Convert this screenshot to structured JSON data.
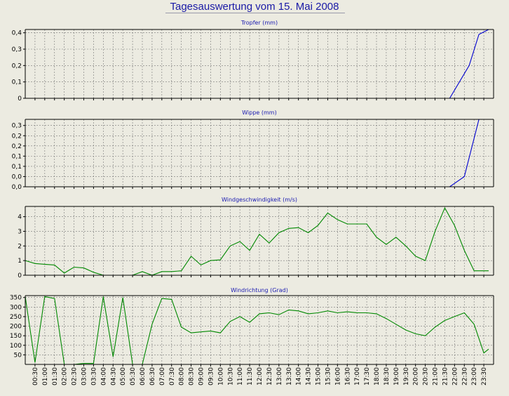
{
  "title": "Tagesauswertung vom 15. Mai 2008",
  "x_ticks": [
    "00:30",
    "01:00",
    "01:30",
    "02:00",
    "02:30",
    "03:00",
    "03:30",
    "04:00",
    "04:30",
    "05:00",
    "05:30",
    "06:00",
    "06:30",
    "07:00",
    "07:30",
    "08:00",
    "08:30",
    "09:00",
    "09:30",
    "10:00",
    "10:30",
    "11:00",
    "11:30",
    "12:00",
    "12:30",
    "13:00",
    "13:30",
    "14:00",
    "14:30",
    "15:00",
    "15:30",
    "16:00",
    "16:30",
    "17:00",
    "17:30",
    "18:00",
    "18:30",
    "19:00",
    "19:30",
    "20:00",
    "20:30",
    "21:00",
    "21:30",
    "22:00",
    "22:30",
    "23:00",
    "23:30"
  ],
  "chart_data": [
    {
      "type": "line",
      "title": "Tropfer (mm)",
      "color": "#0000d0",
      "ylim": [
        0,
        0.42
      ],
      "y_ticks": [
        0,
        0.1,
        0.2,
        0.3,
        0.4
      ],
      "y_tick_labels": [
        "0",
        "0,1",
        "0,2",
        "0,3",
        "0,4"
      ],
      "x_hours": [
        0,
        21.75,
        22.75,
        23.25,
        23.75
      ],
      "values": [
        0,
        0,
        0.2,
        0.39,
        0.42
      ]
    },
    {
      "type": "line",
      "title": "Wippe (mm)",
      "color": "#0000d0",
      "ylim": [
        0,
        0.33
      ],
      "y_ticks": [
        0,
        0.05,
        0.1,
        0.15,
        0.2,
        0.25,
        0.3
      ],
      "y_tick_labels": [
        "0,0",
        "0,0",
        "0,1",
        "0,1",
        "0,2",
        "0,2",
        "0,3"
      ],
      "x_hours": [
        0,
        21.75,
        22.5,
        23.25
      ],
      "values": [
        0,
        0,
        0.05,
        0.33
      ]
    },
    {
      "type": "line",
      "title": "Windgeschwindigkeit (m/s)",
      "color": "#008800",
      "ylim": [
        0,
        4.7
      ],
      "y_ticks": [
        0,
        1,
        2,
        3,
        4
      ],
      "y_tick_labels": [
        "0",
        "1",
        "2",
        "3",
        "4"
      ],
      "x_hours": [
        0,
        0.5,
        1,
        1.5,
        2,
        2.5,
        3,
        3.5,
        4,
        4.5,
        5,
        5.5,
        6,
        6.5,
        7,
        7.5,
        8,
        8.5,
        9,
        9.5,
        10,
        10.5,
        11,
        11.5,
        12,
        12.5,
        13,
        13.5,
        14,
        14.5,
        15,
        15.5,
        16,
        16.5,
        17,
        17.5,
        18,
        18.5,
        19,
        19.5,
        20,
        20.5,
        21,
        21.5,
        22,
        22.5,
        23,
        23.5,
        23.75
      ],
      "values": [
        1.0,
        0.8,
        0.75,
        0.7,
        0.15,
        0.55,
        0.5,
        0.2,
        0.0,
        0.0,
        0.0,
        0.0,
        0.25,
        0.0,
        0.25,
        0.25,
        0.3,
        1.3,
        0.7,
        1.0,
        1.05,
        2.0,
        2.3,
        1.7,
        2.8,
        2.2,
        2.9,
        3.2,
        3.25,
        2.9,
        3.4,
        4.25,
        3.8,
        3.5,
        3.5,
        3.5,
        2.6,
        2.1,
        2.6,
        2.0,
        1.3,
        1.0,
        3.0,
        4.6,
        3.4,
        1.7,
        0.3,
        0.3,
        0.3
      ]
    },
    {
      "type": "line",
      "title": "Windrichtung (Grad)",
      "color": "#008800",
      "ylim": [
        0,
        360
      ],
      "y_ticks": [
        50,
        100,
        150,
        200,
        250,
        300,
        350
      ],
      "y_tick_labels": [
        "50",
        "100",
        "150",
        "200",
        "250",
        "300",
        "350"
      ],
      "x_hours": [
        0,
        0.5,
        1,
        1.5,
        2,
        2.5,
        3,
        3.5,
        4,
        4.5,
        5,
        5.5,
        6,
        6.5,
        7,
        7.5,
        8,
        8.5,
        9,
        9.5,
        10,
        10.5,
        11,
        11.5,
        12,
        12.5,
        13,
        13.5,
        14,
        14.5,
        15,
        15.5,
        16,
        16.5,
        17,
        17.5,
        18,
        18.5,
        19,
        19.5,
        20,
        20.5,
        21,
        21.5,
        22,
        22.5,
        23,
        23.5,
        23.75
      ],
      "values": [
        355,
        10,
        355,
        345,
        0,
        0,
        5,
        5,
        355,
        40,
        350,
        0,
        0,
        210,
        345,
        340,
        195,
        165,
        170,
        175,
        165,
        225,
        250,
        220,
        265,
        270,
        260,
        285,
        280,
        265,
        270,
        280,
        270,
        275,
        270,
        270,
        265,
        240,
        210,
        180,
        160,
        150,
        195,
        230,
        250,
        270,
        210,
        60,
        80
      ]
    }
  ]
}
